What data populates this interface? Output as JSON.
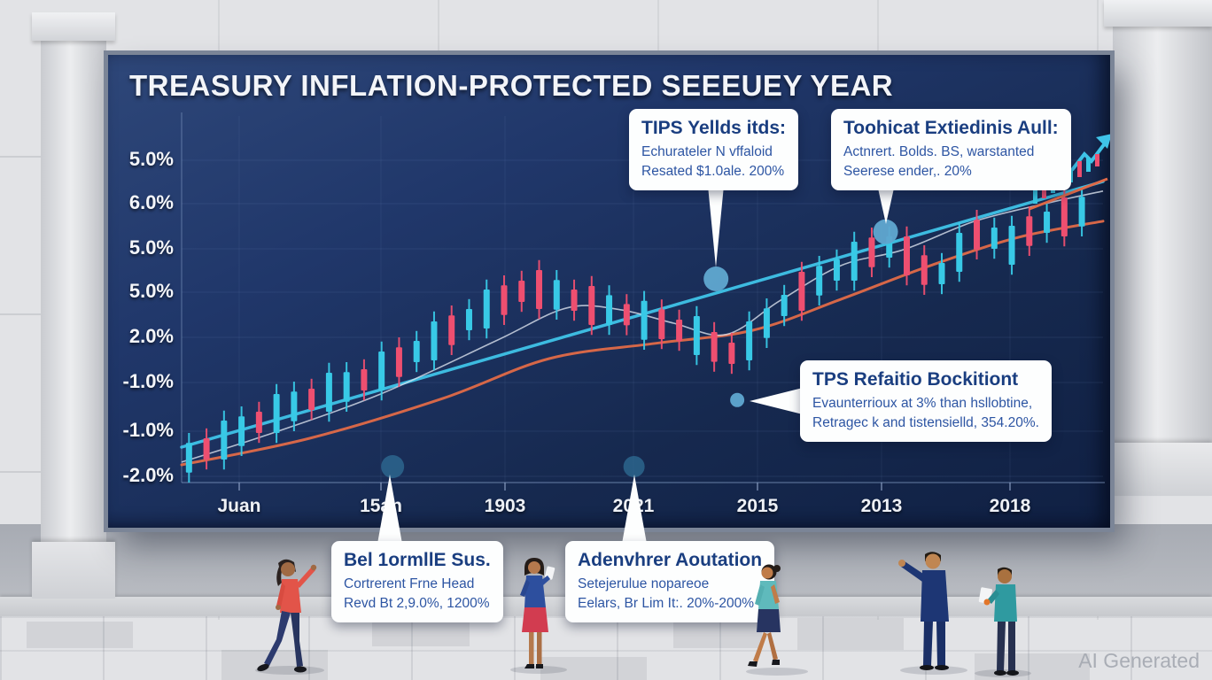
{
  "billboard": {
    "title": "TREASURY INFLATION-PROTECTED SEEEUEY YEAR"
  },
  "watermark": {
    "text": "AI Generated"
  },
  "callouts": [
    {
      "title": "TIPS Yellds itds:",
      "lines": [
        "Echurateler N vffaloid",
        "Resated $1.0ale. 200%"
      ]
    },
    {
      "title": "Toohicat Extiedinis Aull:",
      "lines": [
        "Actnrert. Bolds. BS, warstanted",
        "Seerese ender,. 20%"
      ]
    },
    {
      "title": "TPS Refaitio Bockitiont",
      "lines": [
        "Evaunterrioux at 3% than hsllobtine,",
        "Retragec k and tistensielld, 354.20%."
      ]
    },
    {
      "title": "Bel 1ormllE Sus.",
      "lines": [
        "Cortrerent Frne Head",
        "Revd Bt 2,9.0%, 1200%"
      ]
    },
    {
      "title": "Adenvhrer Aoutation",
      "lines": [
        "Setejerulue nopareoe",
        "Eelars, Br Lim It:. 20%-200%"
      ]
    }
  ],
  "chart_data": {
    "type": "candlestick",
    "title": "TREASURY INFLATION-PROTECTED SEEEUEY YEAR",
    "x_tick_labels": [
      "Juan",
      "15an",
      "1903",
      "2021",
      "2015",
      "2013",
      "2018"
    ],
    "y_tick_labels": [
      "5.0%",
      "6.0%",
      "5.0%",
      "5.0%",
      "2.0%",
      "-1.0%",
      "-1.0%",
      "-2.0%"
    ],
    "grid": true,
    "note": "decorative AI-generated chart; values normalized 0-1 of plot height",
    "colors": {
      "up": "#38c9e6",
      "down": "#ee4f70",
      "trend_line": "#3fc3e8",
      "signal_line": "#e06a48",
      "ma_line": "#d9e1ec",
      "marker": "#5fa7cf",
      "background": "#18294f"
    },
    "trend_line": {
      "from": [
        0,
        0.1
      ],
      "to": [
        1,
        0.85
      ]
    },
    "signal_line": [
      [
        0,
        0.05
      ],
      [
        0.139,
        0.125
      ],
      [
        0.284,
        0.238
      ],
      [
        0.399,
        0.35
      ],
      [
        0.514,
        0.393
      ],
      [
        0.62,
        0.43
      ],
      [
        0.716,
        0.518
      ],
      [
        0.813,
        0.613
      ],
      [
        0.909,
        0.693
      ],
      [
        1,
        0.738
      ]
    ],
    "ma_line": [
      [
        0,
        0.058
      ],
      [
        0.091,
        0.133
      ],
      [
        0.216,
        0.25
      ],
      [
        0.341,
        0.4
      ],
      [
        0.418,
        0.493
      ],
      [
        0.476,
        0.488
      ],
      [
        0.534,
        0.45
      ],
      [
        0.591,
        0.418
      ],
      [
        0.649,
        0.513
      ],
      [
        0.716,
        0.613
      ],
      [
        0.784,
        0.658
      ],
      [
        0.861,
        0.738
      ],
      [
        0.938,
        0.788
      ],
      [
        1,
        0.823
      ]
    ],
    "markers": [
      {
        "u": 0.58,
        "v": 0.575,
        "r": 14,
        "type": "dot"
      },
      {
        "u": 0.764,
        "v": 0.708,
        "r": 14,
        "type": "dot"
      },
      {
        "u": 0.603,
        "v": 0.233,
        "r": 8,
        "type": "dot"
      },
      {
        "u": 0.229,
        "v": 0.045,
        "r": 13,
        "type": "ring"
      },
      {
        "u": 0.491,
        "v": 0.045,
        "r": 12,
        "type": "ring"
      }
    ],
    "candles": [
      [
        0.008,
        0.0,
        0.028,
        0.112,
        0.14,
        1
      ],
      [
        0.027,
        0.037,
        0.065,
        0.125,
        0.153,
        0
      ],
      [
        0.046,
        0.037,
        0.065,
        0.175,
        0.203,
        1
      ],
      [
        0.065,
        0.075,
        0.103,
        0.187,
        0.215,
        1
      ],
      [
        0.084,
        0.112,
        0.14,
        0.2,
        0.228,
        0
      ],
      [
        0.103,
        0.112,
        0.14,
        0.25,
        0.278,
        1
      ],
      [
        0.122,
        0.145,
        0.173,
        0.257,
        0.285,
        1
      ],
      [
        0.141,
        0.177,
        0.205,
        0.265,
        0.293,
        0
      ],
      [
        0.16,
        0.172,
        0.2,
        0.31,
        0.338,
        1
      ],
      [
        0.179,
        0.2,
        0.228,
        0.312,
        0.34,
        1
      ],
      [
        0.198,
        0.232,
        0.26,
        0.32,
        0.348,
        0
      ],
      [
        0.217,
        0.232,
        0.26,
        0.37,
        0.398,
        1
      ],
      [
        0.236,
        0.27,
        0.298,
        0.382,
        0.41,
        0
      ],
      [
        0.255,
        0.312,
        0.34,
        0.4,
        0.428,
        1
      ],
      [
        0.274,
        0.317,
        0.345,
        0.455,
        0.483,
        1
      ],
      [
        0.293,
        0.36,
        0.388,
        0.472,
        0.5,
        0
      ],
      [
        0.312,
        0.402,
        0.43,
        0.49,
        0.518,
        1
      ],
      [
        0.331,
        0.407,
        0.435,
        0.545,
        0.573,
        1
      ],
      [
        0.35,
        0.445,
        0.473,
        0.557,
        0.585,
        0
      ],
      [
        0.369,
        0.482,
        0.51,
        0.57,
        0.598,
        0
      ],
      [
        0.388,
        0.462,
        0.49,
        0.6,
        0.628,
        0
      ],
      [
        0.407,
        0.46,
        0.488,
        0.572,
        0.6,
        1
      ],
      [
        0.426,
        0.457,
        0.485,
        0.545,
        0.573,
        0
      ],
      [
        0.445,
        0.417,
        0.445,
        0.555,
        0.583,
        0
      ],
      [
        0.464,
        0.417,
        0.445,
        0.529,
        0.557,
        1
      ],
      [
        0.483,
        0.416,
        0.444,
        0.504,
        0.532,
        0
      ],
      [
        0.502,
        0.375,
        0.403,
        0.513,
        0.541,
        1
      ],
      [
        0.521,
        0.377,
        0.405,
        0.489,
        0.517,
        0
      ],
      [
        0.54,
        0.372,
        0.4,
        0.46,
        0.488,
        0
      ],
      [
        0.559,
        0.332,
        0.36,
        0.47,
        0.498,
        1
      ],
      [
        0.578,
        0.313,
        0.341,
        0.425,
        0.453,
        0
      ],
      [
        0.597,
        0.307,
        0.335,
        0.395,
        0.423,
        0
      ],
      [
        0.616,
        0.317,
        0.345,
        0.455,
        0.483,
        1
      ],
      [
        0.635,
        0.38,
        0.408,
        0.492,
        0.52,
        1
      ],
      [
        0.654,
        0.442,
        0.47,
        0.53,
        0.558,
        1
      ],
      [
        0.673,
        0.457,
        0.485,
        0.595,
        0.623,
        0
      ],
      [
        0.692,
        0.5,
        0.528,
        0.612,
        0.64,
        1
      ],
      [
        0.711,
        0.542,
        0.57,
        0.63,
        0.658,
        1
      ],
      [
        0.73,
        0.542,
        0.57,
        0.68,
        0.708,
        1
      ],
      [
        0.749,
        0.58,
        0.608,
        0.692,
        0.72,
        0
      ],
      [
        0.768,
        0.607,
        0.635,
        0.695,
        0.723,
        1
      ],
      [
        0.787,
        0.557,
        0.585,
        0.695,
        0.723,
        0
      ],
      [
        0.806,
        0.53,
        0.558,
        0.642,
        0.67,
        0
      ],
      [
        0.825,
        0.532,
        0.56,
        0.62,
        0.648,
        1
      ],
      [
        0.844,
        0.567,
        0.595,
        0.705,
        0.733,
        1
      ],
      [
        0.863,
        0.63,
        0.658,
        0.742,
        0.77,
        0
      ],
      [
        0.882,
        0.632,
        0.66,
        0.72,
        0.748,
        1
      ],
      [
        0.901,
        0.587,
        0.615,
        0.725,
        0.753,
        1
      ],
      [
        0.92,
        0.64,
        0.668,
        0.752,
        0.78,
        0
      ],
      [
        0.939,
        0.677,
        0.705,
        0.765,
        0.793,
        1
      ],
      [
        0.958,
        0.667,
        0.695,
        0.805,
        0.833,
        0
      ],
      [
        0.977,
        0.695,
        0.723,
        0.807,
        0.835,
        1
      ]
    ]
  }
}
